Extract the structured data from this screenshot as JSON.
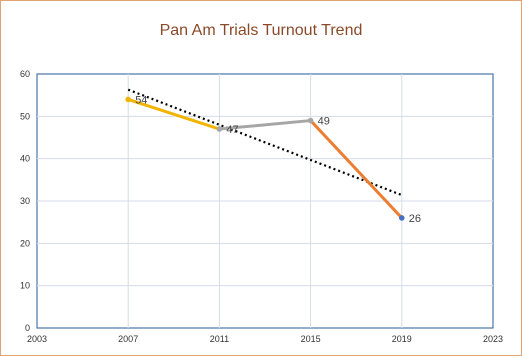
{
  "chart_data": {
    "type": "line",
    "title": "Pan Am Trials Turnout Trend",
    "xlim": [
      2003,
      2023
    ],
    "ylim": [
      0,
      60
    ],
    "x_ticks": [
      "2003",
      "2007",
      "2011",
      "2015",
      "2019",
      "2023"
    ],
    "y_ticks": [
      "0",
      "10",
      "20",
      "30",
      "40",
      "50",
      "60"
    ],
    "grid": true,
    "legend": "none",
    "points": [
      {
        "x": 2007,
        "y": 54,
        "label": "54"
      },
      {
        "x": 2011,
        "y": 47,
        "label": "47"
      },
      {
        "x": 2015,
        "y": 49,
        "label": "49"
      },
      {
        "x": 2019,
        "y": 26,
        "label": "26"
      }
    ],
    "segments": [
      {
        "from": 0,
        "to": 1,
        "color": "#f2b400"
      },
      {
        "from": 1,
        "to": 2,
        "color": "#a6a6a6"
      },
      {
        "from": 2,
        "to": 3,
        "color": "#ed7d31"
      }
    ],
    "point_colors": [
      "#f2b400",
      "#a6a6a6",
      "#a6a6a6",
      "#4472c4"
    ],
    "trendline": {
      "style": "dotted",
      "color": "#000000",
      "x": [
        2007,
        2019
      ],
      "y": [
        56.3,
        31.4
      ]
    }
  }
}
